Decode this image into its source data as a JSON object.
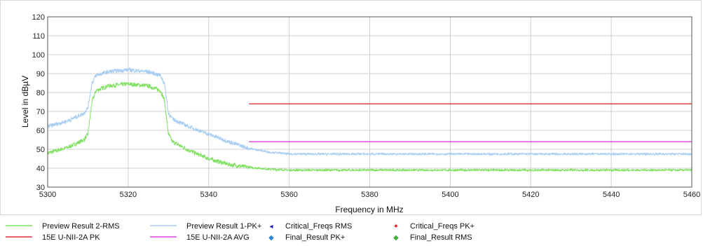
{
  "chart_data": {
    "type": "line",
    "xlabel": "Frequency in MHz",
    "ylabel": "Level in dBµV",
    "xlim": [
      5300,
      5460
    ],
    "ylim": [
      30,
      120
    ],
    "x_ticks": [
      5300,
      5320,
      5340,
      5360,
      5380,
      5400,
      5420,
      5440,
      5460
    ],
    "y_ticks": [
      30,
      40,
      50,
      60,
      70,
      80,
      90,
      100,
      110,
      120
    ],
    "grid": true,
    "colors": {
      "rms": "#7fe060",
      "pk": "#a8cdf2",
      "limit_pk": "#e0303a",
      "limit_avg": "#e040e0",
      "crit_rms": "#1010c0",
      "crit_pk": "#e02020",
      "final_pk": "#2e86d0",
      "final_rms": "#40b040"
    },
    "series": [
      {
        "name": "Preview Result 2-RMS",
        "x": [
          5300,
          5305,
          5309,
          5310,
          5311,
          5312,
          5315,
          5320,
          5325,
          5328,
          5329,
          5330,
          5331,
          5335,
          5340,
          5345,
          5350,
          5355,
          5360,
          5380,
          5400,
          5420,
          5440,
          5460
        ],
        "y": [
          48,
          51,
          55,
          58,
          75,
          81,
          83.5,
          84.5,
          83.5,
          81,
          76,
          58,
          54,
          49.5,
          45,
          42,
          40.5,
          39.5,
          39,
          39,
          39,
          39,
          39,
          39
        ]
      },
      {
        "name": "Preview Result 1-PK+",
        "x": [
          5300,
          5305,
          5309,
          5310,
          5311,
          5312,
          5315,
          5320,
          5325,
          5328,
          5329,
          5330,
          5331,
          5335,
          5340,
          5345,
          5350,
          5355,
          5360,
          5380,
          5400,
          5420,
          5440,
          5460
        ],
        "y": [
          62,
          65,
          69,
          72,
          85,
          89,
          91,
          92,
          91,
          89,
          85,
          69,
          66,
          62,
          58,
          54,
          50.5,
          48.5,
          47.5,
          47.5,
          47.5,
          47.5,
          47.5,
          47.5
        ]
      },
      {
        "name": "15E U-NII-2A PK",
        "x": [
          5350,
          5460
        ],
        "y": [
          74,
          74
        ]
      },
      {
        "name": "15E U-NII-2A AVG",
        "x": [
          5350,
          5460
        ],
        "y": [
          54,
          54
        ]
      }
    ],
    "legend": {
      "placement": "bottom",
      "entries": [
        {
          "label": "Preview Result 2-RMS",
          "kind": "line",
          "color": "#7fe060"
        },
        {
          "label": "Preview Result 1-PK+",
          "kind": "line",
          "color": "#a8cdf2"
        },
        {
          "label": "Critical_Freqs RMS",
          "kind": "marker",
          "color": "#1010c0",
          "symbol": "◂"
        },
        {
          "label": "Critical_Freqs PK+",
          "kind": "marker",
          "color": "#e02020",
          "symbol": "✦"
        },
        {
          "label": "15E U-NII-2A PK",
          "kind": "line",
          "color": "#e0303a"
        },
        {
          "label": "15E U-NII-2A AVG",
          "kind": "line",
          "color": "#e040e0"
        },
        {
          "label": "Final_Result PK+",
          "kind": "marker",
          "color": "#2e86d0",
          "symbol": "◆"
        },
        {
          "label": "Final_Result RMS",
          "kind": "marker",
          "color": "#40b040",
          "symbol": "◆"
        }
      ]
    }
  }
}
